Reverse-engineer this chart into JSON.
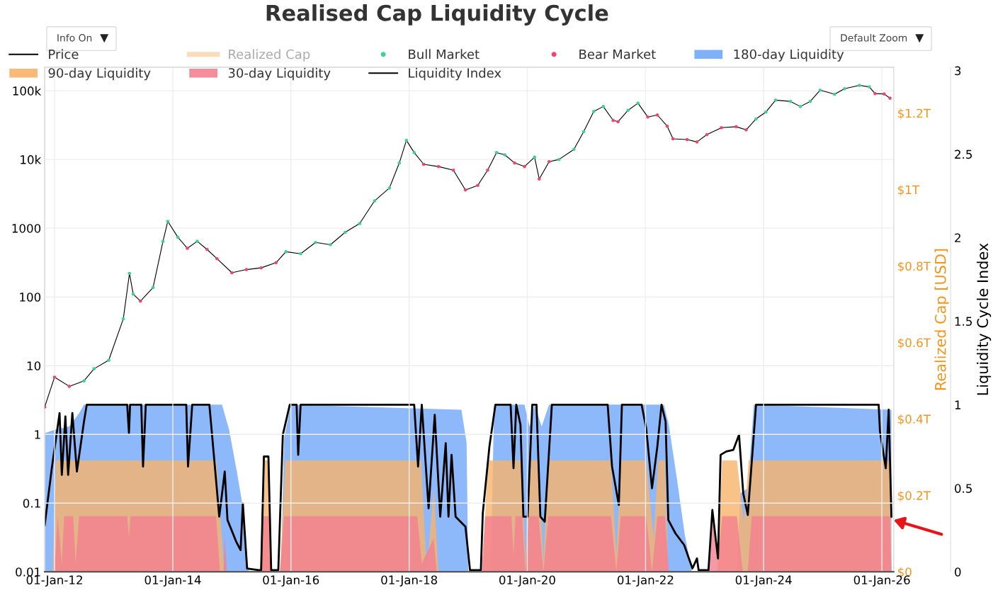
{
  "chart_data": {
    "type": "line",
    "title": "Realised Cap Liquidity Cycle",
    "annotations": [
      "Info On",
      "Default Zoom"
    ],
    "xlim": [
      "2011-11-01",
      "2026-03-15"
    ],
    "xticks": [
      {
        "value": "2012-01-01",
        "label": "01-Jan-12"
      },
      {
        "value": "2014-01-01",
        "label": "01-Jan-14"
      },
      {
        "value": "2016-01-01",
        "label": "01-Jan-16"
      },
      {
        "value": "2018-01-01",
        "label": "01-Jan-18"
      },
      {
        "value": "2020-01-01",
        "label": "01-Jan-20"
      },
      {
        "value": "2022-01-01",
        "label": "01-Jan-22"
      },
      {
        "value": "2024-01-01",
        "label": "01-Jan-24"
      },
      {
        "value": "2026-01-01",
        "label": "01-Jan-26"
      }
    ],
    "log": "y",
    "ylim": [
      0.01,
      220000
    ],
    "yticks": [
      0.01,
      0.1,
      1,
      10,
      100,
      1000,
      {
        "value": 10000,
        "label": "10k"
      },
      {
        "value": 100000,
        "label": "100k"
      }
    ],
    "y2label": "Realized Cap [USD]",
    "y2lim": [
      0,
      1320000000000
    ],
    "y2ticks": [
      {
        "value": 0,
        "label": "$0"
      },
      {
        "value": 200000000000,
        "label": "$0.2T"
      },
      {
        "value": 400000000000,
        "label": "$0.4T"
      },
      {
        "value": 600000000000,
        "label": "$0.6T"
      },
      {
        "value": 800000000000,
        "label": "$0.8T"
      },
      {
        "value": 1000000000000,
        "label": "$1T"
      },
      {
        "value": 1200000000000,
        "label": "$1.2T"
      }
    ],
    "y3label": "Liquidity Cycle Index",
    "y3lim": [
      0,
      3.02
    ],
    "y3ticks": [
      0,
      0.5,
      1,
      1.5,
      2,
      2.5,
      3
    ],
    "grid": true,
    "legend": "top",
    "series": [
      {
        "name": "Price",
        "color": "#000000",
        "x": [
          "2011-11-01",
          "2012-01-01",
          "2012-04-01",
          "2012-07-01",
          "2012-09-01",
          "2012-12-01",
          "2013-03-01",
          "2013-04-08",
          "2013-05-01",
          "2013-06-15",
          "2013-09-01",
          "2013-11-01",
          "2013-12-01",
          "2014-02-01",
          "2014-04-01",
          "2014-06-01",
          "2014-08-01",
          "2014-10-01",
          "2015-01-01",
          "2015-04-01",
          "2015-07-01",
          "2015-10-01",
          "2015-12-01",
          "2016-03-01",
          "2016-06-01",
          "2016-09-01",
          "2016-12-01",
          "2017-03-01",
          "2017-06-01",
          "2017-09-01",
          "2017-11-01",
          "2017-12-15",
          "2018-02-01",
          "2018-04-01",
          "2018-07-01",
          "2018-10-01",
          "2018-12-15",
          "2019-03-01",
          "2019-05-01",
          "2019-06-25",
          "2019-08-15",
          "2019-10-15",
          "2019-12-15",
          "2020-02-15",
          "2020-03-15",
          "2020-05-15",
          "2020-07-15",
          "2020-10-15",
          "2020-12-15",
          "2021-02-15",
          "2021-04-15",
          "2021-06-15",
          "2021-07-15",
          "2021-09-15",
          "2021-11-15",
          "2022-01-15",
          "2022-03-15",
          "2022-05-15",
          "2022-06-20",
          "2022-09-15",
          "2022-11-15",
          "2023-01-15",
          "2023-04-15",
          "2023-07-15",
          "2023-09-15",
          "2023-11-15",
          "2024-01-15",
          "2024-03-15",
          "2024-06-15",
          "2024-08-15",
          "2024-10-15",
          "2024-12-15",
          "2025-03-15",
          "2025-05-15",
          "2025-08-15",
          "2025-10-15",
          "2025-11-20",
          "2026-01-15",
          "2026-02-20"
        ],
        "values": [
          2.5,
          6.8,
          5,
          6,
          9,
          12,
          48,
          220,
          110,
          87,
          137,
          640,
          1260,
          740,
          510,
          645,
          490,
          360,
          225,
          250,
          265,
          315,
          455,
          425,
          620,
          575,
          870,
          1170,
          2500,
          3850,
          8900,
          19000,
          12600,
          8500,
          7900,
          7000,
          3600,
          4200,
          7000,
          12600,
          11700,
          8900,
          7900,
          10800,
          5200,
          9300,
          10000,
          14000,
          25500,
          50000,
          59000,
          37000,
          35500,
          52000,
          66000,
          41500,
          44500,
          30500,
          20000,
          19500,
          18000,
          23000,
          29000,
          30000,
          27000,
          39000,
          49000,
          73000,
          70000,
          59000,
          70000,
          102000,
          89000,
          107000,
          120000,
          114000,
          91000,
          90000,
          78000
        ]
      },
      {
        "name": "Realized Cap",
        "type": "line",
        "color": "#f8c48a",
        "axis": "y2"
      },
      {
        "name": "Bull Market",
        "type": "scatter",
        "color": "#3cd38f",
        "x": [
          "2012-07-01",
          "2012-09-01",
          "2012-12-01",
          "2013-03-01",
          "2013-04-08",
          "2013-05-01",
          "2013-09-01",
          "2013-11-01",
          "2013-12-01",
          "2014-02-01",
          "2014-06-01",
          "2015-12-01",
          "2016-03-01",
          "2016-06-01",
          "2016-09-01",
          "2016-12-01",
          "2017-03-01",
          "2017-06-01",
          "2017-09-01",
          "2017-11-01",
          "2017-12-15",
          "2018-02-01",
          "2019-06-25",
          "2019-08-15",
          "2020-02-15",
          "2020-07-15",
          "2020-10-15",
          "2020-12-15",
          "2021-02-15",
          "2021-04-15",
          "2021-09-15",
          "2021-11-15",
          "2023-11-15",
          "2024-01-15",
          "2024-03-15",
          "2024-06-15",
          "2024-08-15",
          "2024-10-15",
          "2024-12-15",
          "2025-03-15",
          "2025-05-15",
          "2025-08-15",
          "2025-10-15"
        ],
        "values": [
          6,
          9,
          12,
          48,
          220,
          110,
          137,
          640,
          1260,
          740,
          645,
          455,
          425,
          620,
          575,
          870,
          1170,
          2500,
          3850,
          8900,
          19000,
          12600,
          12600,
          11700,
          10800,
          10000,
          14000,
          25500,
          50000,
          59000,
          52000,
          66000,
          39000,
          49000,
          73000,
          70000,
          59000,
          70000,
          102000,
          89000,
          107000,
          120000,
          114000
        ]
      },
      {
        "name": "Bear Market",
        "type": "scatter",
        "color": "#f2456a",
        "x": [
          "2011-11-01",
          "2012-01-01",
          "2012-04-01",
          "2013-06-15",
          "2014-04-01",
          "2014-08-01",
          "2014-10-01",
          "2015-01-01",
          "2015-04-01",
          "2015-07-01",
          "2015-10-01",
          "2018-04-01",
          "2018-07-01",
          "2018-10-01",
          "2018-12-15",
          "2019-03-01",
          "2019-05-01",
          "2019-10-15",
          "2019-12-15",
          "2020-03-15",
          "2020-05-15",
          "2021-06-15",
          "2021-07-15",
          "2022-01-15",
          "2022-03-15",
          "2022-05-15",
          "2022-06-20",
          "2022-09-15",
          "2022-11-15",
          "2023-01-15",
          "2023-04-15",
          "2023-07-15",
          "2023-09-15",
          "2025-11-20",
          "2026-01-15",
          "2026-02-20"
        ],
        "values": [
          2.5,
          6.8,
          5,
          87,
          510,
          490,
          360,
          225,
          250,
          265,
          315,
          8500,
          7900,
          7000,
          3600,
          4200,
          7000,
          8900,
          7900,
          5200,
          9300,
          37000,
          35500,
          41500,
          44500,
          30500,
          20000,
          19500,
          18000,
          23000,
          29000,
          30000,
          27000,
          91000,
          90000,
          78000
        ]
      },
      {
        "name": "180-day Liquidity",
        "type": "area",
        "color": "#70a8fa",
        "axis": "y3",
        "x": [
          "2011-11-01",
          "2012-01-01",
          "2012-04-01",
          "2012-06-01",
          "2012-07-01",
          "2014-11-01",
          "2014-12-15",
          "2015-02-01",
          "2015-03-08",
          "2015-04-15",
          "2015-11-01",
          "2015-11-20",
          "2016-01-01",
          "2018-11-20",
          "2018-12-22",
          "2019-01-01",
          "2019-05-20",
          "2019-06-10",
          "2019-12-15",
          "2020-01-15",
          "2020-02-15",
          "2020-03-30",
          "2020-05-15",
          "2022-04-25",
          "2022-05-25",
          "2022-07-15",
          "2022-09-01",
          "2022-10-15",
          "2023-07-20",
          "2023-08-10",
          "2023-09-25",
          "2023-11-01",
          "2026-03-01"
        ],
        "values": [
          0.83,
          0.85,
          0.87,
          0.95,
          1,
          1,
          0.85,
          0.6,
          0.4,
          0,
          0,
          0.8,
          1,
          0.97,
          0.77,
          0,
          0,
          1,
          1,
          0.87,
          1,
          0.87,
          1,
          1,
          0.88,
          0.55,
          0.22,
          0,
          0,
          0.47,
          0.5,
          1,
          0.97
        ]
      },
      {
        "name": "90-day Liquidity",
        "type": "area",
        "color": "#f8b36a",
        "axis": "y3",
        "x": [
          "2011-11-01",
          "2011-12-20",
          "2012-01-10",
          "2014-09-28",
          "2014-11-15",
          "2015-06-25",
          "2015-07-15",
          "2015-08-20",
          "2015-09-01",
          "2015-10-25",
          "2015-11-28",
          "2018-03-15",
          "2018-04-20",
          "2018-06-01",
          "2018-07-01",
          "2019-04-01",
          "2019-05-01",
          "2019-12-01",
          "2019-12-20",
          "2020-01-20",
          "2020-03-10",
          "2020-04-10",
          "2020-05-10",
          "2021-06-01",
          "2021-07-05",
          "2021-08-01",
          "2022-01-05",
          "2022-02-20",
          "2022-03-20",
          "2022-05-01",
          "2022-05-20",
          "2023-03-20",
          "2023-04-20",
          "2023-07-20",
          "2023-09-01",
          "2023-10-01",
          "2026-02-20",
          "2026-03-01"
        ],
        "values": [
          0,
          0,
          0.667,
          0.667,
          0,
          0,
          0.667,
          0.667,
          0,
          0,
          0.667,
          0.667,
          0,
          0.5,
          0,
          0,
          0.667,
          0.667,
          0.05,
          0.667,
          0.667,
          0.05,
          0.667,
          0.667,
          0.1,
          0.667,
          0.667,
          0.2,
          0.667,
          0.667,
          0,
          0,
          0.667,
          0.667,
          0.3,
          0.667,
          0.667,
          0
        ]
      },
      {
        "name": "30-day Liquidity",
        "type": "area",
        "color": "#f47f91",
        "axis": "y3",
        "x": [
          "2011-11-01",
          "2012-01-01",
          "2012-01-20",
          "2012-02-15",
          "2012-03-01",
          "2012-04-25",
          "2012-05-10",
          "2012-06-01",
          "2013-03-25",
          "2013-04-05",
          "2013-04-15",
          "2014-09-25",
          "2014-10-20",
          "2014-11-10",
          "2014-11-18",
          "2014-12-01",
          "2015-06-25",
          "2015-07-15",
          "2015-08-20",
          "2015-09-01",
          "2015-10-25",
          "2015-11-20",
          "2018-02-20",
          "2018-03-20",
          "2018-06-01",
          "2018-06-20",
          "2019-03-25",
          "2019-04-15",
          "2019-09-25",
          "2019-10-08",
          "2019-10-20",
          "2019-12-01",
          "2019-12-20",
          "2020-01-10",
          "2020-03-10",
          "2020-04-10",
          "2020-05-10",
          "2021-06-01",
          "2021-07-05",
          "2021-08-01",
          "2022-01-05",
          "2022-02-10",
          "2022-03-15",
          "2022-05-01",
          "2022-05-25",
          "2023-01-25",
          "2023-02-15",
          "2023-03-25",
          "2023-04-20",
          "2023-07-20",
          "2023-08-25",
          "2023-09-25",
          "2023-10-20",
          "2026-02-20",
          "2026-03-01"
        ],
        "values": [
          0,
          0,
          0.333,
          0.05,
          0.333,
          0.333,
          0.05,
          0.333,
          0.333,
          0.2,
          0.333,
          0.333,
          0,
          0,
          0.22,
          0,
          0,
          0.333,
          0.333,
          0,
          0,
          0.333,
          0.333,
          0.05,
          0.2,
          0,
          0,
          0.333,
          0.333,
          0.1,
          0.333,
          0.333,
          0,
          0.333,
          0.333,
          0,
          0.333,
          0.333,
          0,
          0.333,
          0.333,
          0,
          0.333,
          0.333,
          0,
          0,
          0.333,
          0.1,
          0.333,
          0.333,
          0,
          0,
          0.333,
          0.333,
          0
        ]
      },
      {
        "name": "Liquidity Index",
        "type": "line",
        "color": "#000000",
        "axis": "y3",
        "x": [
          "2011-11-01",
          "2011-12-15",
          "2012-02-01",
          "2012-02-15",
          "2012-03-08",
          "2012-03-25",
          "2012-04-20",
          "2012-05-18",
          "2012-07-01",
          "2012-07-18",
          "2013-03-25",
          "2013-04-05",
          "2013-04-12",
          "2013-06-20",
          "2013-07-01",
          "2013-07-18",
          "2014-03-25",
          "2014-04-05",
          "2014-05-01",
          "2014-08-15",
          "2014-09-28",
          "2014-10-15",
          "2014-11-18",
          "2014-12-05",
          "2015-01-28",
          "2015-02-24",
          "2015-03-10",
          "2015-04-05",
          "2015-06-15",
          "2015-07-01",
          "2015-07-18",
          "2015-08-15",
          "2015-09-01",
          "2015-10-15",
          "2015-11-12",
          "2015-12-25",
          "2016-02-05",
          "2016-02-15",
          "2016-03-01",
          "2018-02-01",
          "2018-02-25",
          "2018-03-20",
          "2018-05-01",
          "2018-06-08",
          "2018-07-12",
          "2018-08-15",
          "2018-09-01",
          "2018-09-20",
          "2018-10-15",
          "2018-12-15",
          "2019-01-12",
          "2019-03-20",
          "2019-04-01",
          "2019-05-12",
          "2019-06-18",
          "2019-09-20",
          "2019-10-08",
          "2019-10-25",
          "2019-11-20",
          "2019-12-08",
          "2020-01-03",
          "2020-02-01",
          "2020-02-27",
          "2020-03-22",
          "2020-04-18",
          "2020-06-01",
          "2021-05-12",
          "2021-06-08",
          "2021-07-20",
          "2021-08-08",
          "2021-12-08",
          "2022-01-05",
          "2022-02-10",
          "2022-03-15",
          "2022-04-10",
          "2022-05-05",
          "2022-05-22",
          "2022-07-05",
          "2022-08-28",
          "2022-10-18",
          "2022-11-15",
          "2022-11-25",
          "2023-01-25",
          "2023-02-18",
          "2023-03-25",
          "2023-04-10",
          "2023-05-15",
          "2023-06-28",
          "2023-08-02",
          "2023-08-28",
          "2023-09-25",
          "2023-11-15",
          "2025-12-12",
          "2025-12-20",
          "2026-01-25",
          "2026-02-12",
          "2026-03-01"
        ],
        "values": [
          0.28,
          0.62,
          0.95,
          0.58,
          0.93,
          0.58,
          0.95,
          0.6,
          0.9,
          1,
          1,
          0.83,
          1,
          1,
          0.63,
          1,
          1,
          0.63,
          1,
          1,
          0.52,
          0.33,
          0.6,
          0.31,
          0.18,
          0.13,
          0.41,
          0.02,
          0.01,
          0.01,
          0.69,
          0.69,
          0.01,
          0.01,
          0.82,
          1,
          1,
          0.7,
          1,
          1,
          0.63,
          1,
          0.38,
          0.94,
          0.33,
          0.77,
          0.33,
          0.7,
          0.33,
          0.27,
          0.01,
          0.01,
          0.35,
          0.75,
          1,
          1,
          0.62,
          1,
          0.88,
          0.33,
          0.33,
          1,
          1,
          0.33,
          0.3,
          1,
          1,
          0.63,
          0.4,
          1,
          1,
          0.86,
          0.5,
          0.75,
          1,
          0.9,
          0.31,
          0.23,
          0.16,
          0.02,
          0.08,
          0.01,
          0.01,
          0.37,
          0.08,
          0.7,
          0.72,
          0.73,
          0.82,
          0.47,
          0.34,
          1,
          1,
          0.84,
          0.62,
          0.97,
          0.33
        ]
      }
    ]
  }
}
